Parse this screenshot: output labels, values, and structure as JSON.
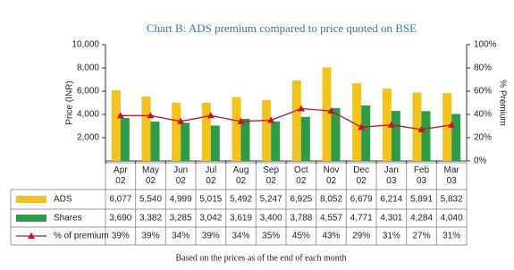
{
  "chart_data": {
    "type": "bar",
    "title": "Chart B: ADS premium compared to price quoted on BSE",
    "ylabel": "Price (INR)",
    "y2label": "% Premium",
    "note": "Based on the prices as of the end of each month",
    "categories": [
      "Apr 02",
      "May 02",
      "Jun 02",
      "Jul 02",
      "Aug 02",
      "Sep 02",
      "Oct 02",
      "Nov 02",
      "Dec 02",
      "Jan 03",
      "Feb 03",
      "Mar 03"
    ],
    "series": [
      {
        "name": "ADS",
        "color": "#f2c31c",
        "values": [
          6077,
          5540,
          4999,
          5015,
          5492,
          5247,
          6925,
          8052,
          6679,
          6214,
          5891,
          5832
        ],
        "value_labels": [
          "6,077",
          "5,540",
          "4,999",
          "5,015",
          "5,492",
          "5,247",
          "6,925",
          "8,052",
          "6,679",
          "6,214",
          "5,891",
          "5,832"
        ]
      },
      {
        "name": "Shares",
        "color": "#2e9b48",
        "values": [
          3690,
          3382,
          3285,
          3042,
          3619,
          3400,
          3788,
          4557,
          4771,
          4301,
          4284,
          4040
        ],
        "value_labels": [
          "3,690",
          "3,382",
          "3,285",
          "3,042",
          "3,619",
          "3,400",
          "3,788",
          "4,557",
          "4,771",
          "4,301",
          "4,284",
          "4,040"
        ]
      },
      {
        "name": "% of premium",
        "color": "#c8102e",
        "type": "line",
        "axis": "y2",
        "values": [
          39,
          39,
          34,
          39,
          34,
          35,
          45,
          43,
          29,
          31,
          27,
          31
        ],
        "value_labels": [
          "39%",
          "39%",
          "34%",
          "39%",
          "34%",
          "35%",
          "45%",
          "43%",
          "29%",
          "31%",
          "27%",
          "31%"
        ]
      }
    ],
    "ylim": [
      0,
      10000
    ],
    "yticks": [
      {
        "value": 2000,
        "label": "2,000"
      },
      {
        "value": 4000,
        "label": "4,000"
      },
      {
        "value": 6000,
        "label": "6,000"
      },
      {
        "value": 8000,
        "label": "8,000"
      },
      {
        "value": 10000,
        "label": "10,000"
      }
    ],
    "y2lim": [
      0,
      100
    ],
    "y2ticks": [
      {
        "value": 0,
        "label": "0%"
      },
      {
        "value": 20,
        "label": "20%"
      },
      {
        "value": 40,
        "label": "40%"
      },
      {
        "value": 60,
        "label": "60%"
      },
      {
        "value": 80,
        "label": "80%"
      },
      {
        "value": 100,
        "label": "100%"
      }
    ]
  }
}
